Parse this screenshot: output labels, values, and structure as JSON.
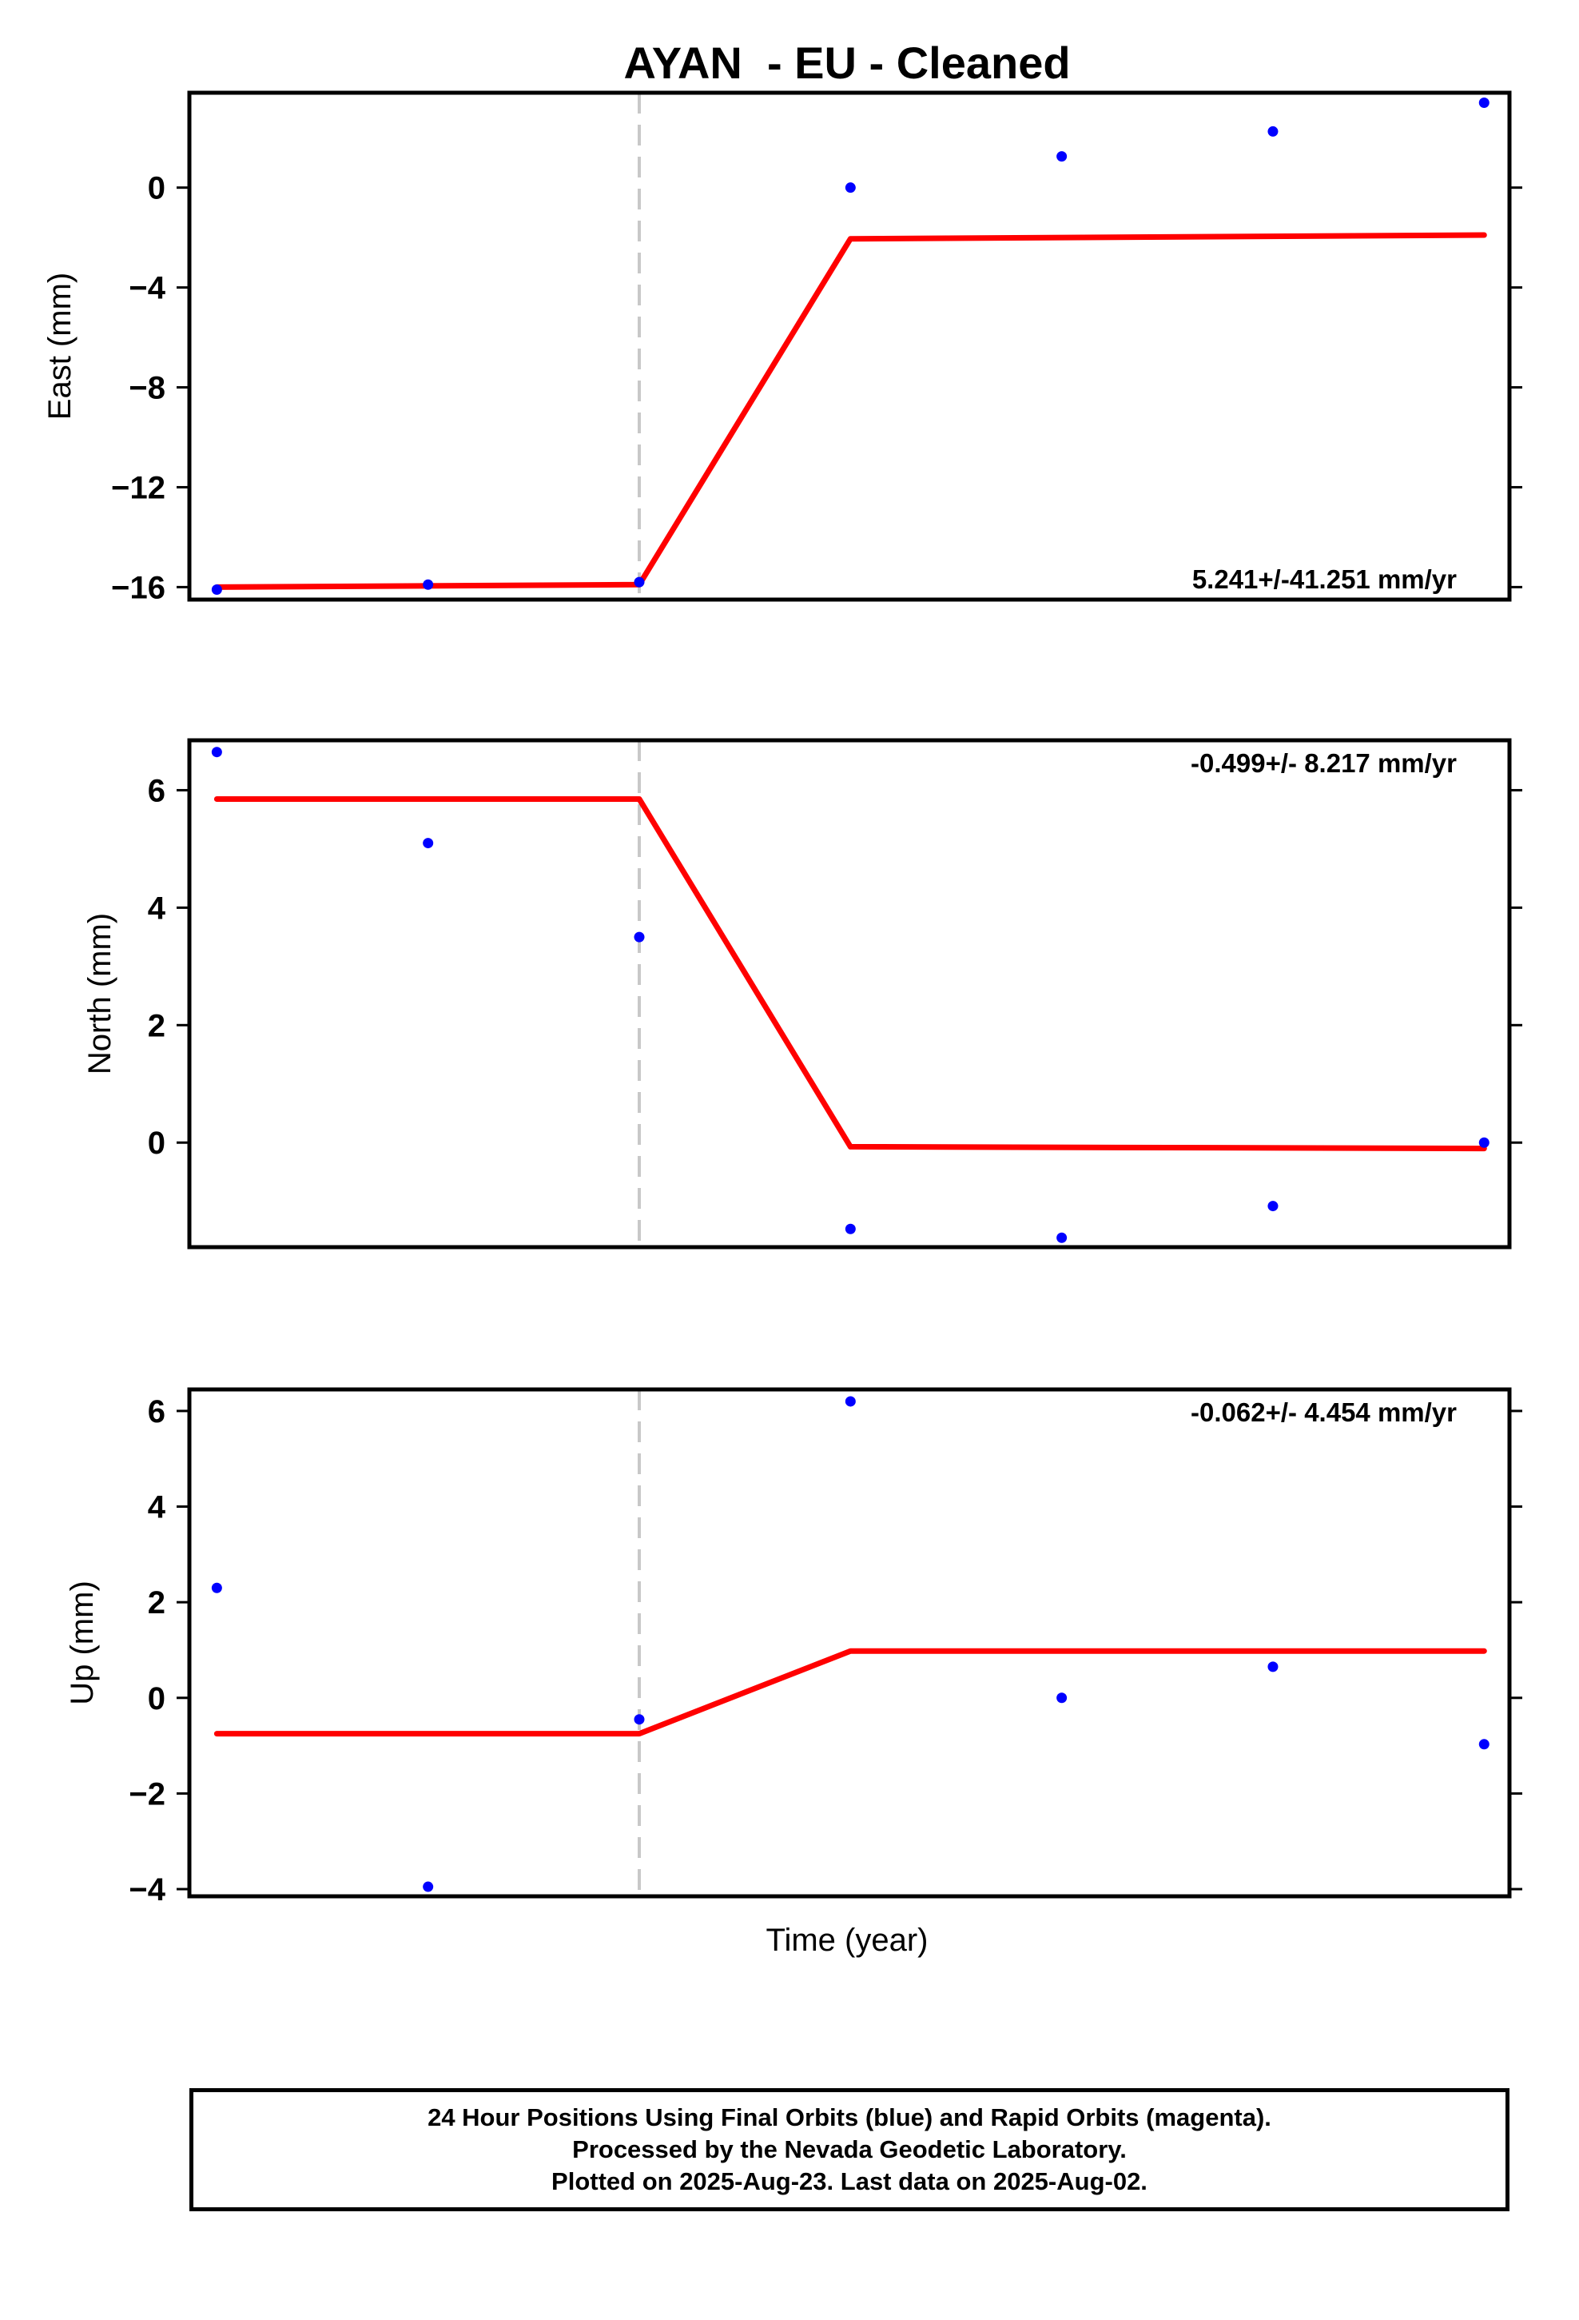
{
  "title": "AYAN  - EU - Cleaned",
  "xlabel": "Time (year)",
  "footer": {
    "line1": "24 Hour Positions Using Final Orbits (blue) and Rapid Orbits (magenta).",
    "line2": "Processed by the Nevada Geodetic Laboratory.",
    "line3": "Plotted on 2025-Aug-23. Last data on 2025-Aug-02."
  },
  "colors": {
    "points": "#0000ff",
    "model": "#ff0000",
    "marker": "#c8c8c8",
    "axes": "#000000"
  },
  "chart_data": [
    {
      "type": "scatter",
      "ylabel": "East (mm)",
      "rate_text": "5.241+/-41.251 mm/yr",
      "rate_position": "bottom-right",
      "ylim": [
        -16.5,
        3.8
      ],
      "yticks": [
        0,
        -4,
        -8,
        -12,
        -16
      ],
      "x": [
        1,
        2,
        3,
        4,
        5,
        6,
        7
      ],
      "xlim": [
        0.87,
        7.12
      ],
      "event_x": 3,
      "series": [
        {
          "values": [
            -16.1,
            -15.9,
            -15.8,
            0.0,
            1.25,
            2.25,
            3.4
          ]
        },
        {
          "x": [
            1,
            3,
            4,
            7
          ],
          "values": [
            -16.0,
            -15.9,
            -2.05,
            -1.9
          ]
        }
      ]
    },
    {
      "type": "scatter",
      "ylabel": "North (mm)",
      "rate_text": "-0.499+/- 8.217 mm/yr",
      "rate_position": "top-right",
      "ylim": [
        -1.78,
        6.85
      ],
      "yticks": [
        6,
        4,
        2,
        0
      ],
      "x": [
        1,
        2,
        3,
        4,
        5,
        6,
        7
      ],
      "xlim": [
        0.87,
        7.12
      ],
      "event_x": 3,
      "series": [
        {
          "values": [
            6.65,
            5.1,
            3.5,
            -1.47,
            -1.62,
            -1.08,
            0.0
          ]
        },
        {
          "x": [
            1,
            3,
            4,
            7
          ],
          "values": [
            5.85,
            5.85,
            -0.07,
            -0.1
          ]
        }
      ]
    },
    {
      "type": "scatter",
      "ylabel": "Up (mm)",
      "rate_text": "-0.062+/- 4.454 mm/yr",
      "rate_position": "top-right",
      "ylim": [
        -4.15,
        6.45
      ],
      "yticks": [
        6,
        4,
        2,
        0,
        -2,
        -4
      ],
      "x": [
        1,
        2,
        3,
        4,
        5,
        6,
        7
      ],
      "xlim": [
        0.87,
        7.12
      ],
      "event_x": 3,
      "series": [
        {
          "values": [
            2.3,
            -3.95,
            -0.45,
            6.2,
            0.0,
            0.65,
            -0.97
          ]
        },
        {
          "x": [
            1,
            3,
            4,
            7
          ],
          "values": [
            -0.75,
            -0.75,
            0.98,
            0.98
          ]
        }
      ]
    }
  ]
}
